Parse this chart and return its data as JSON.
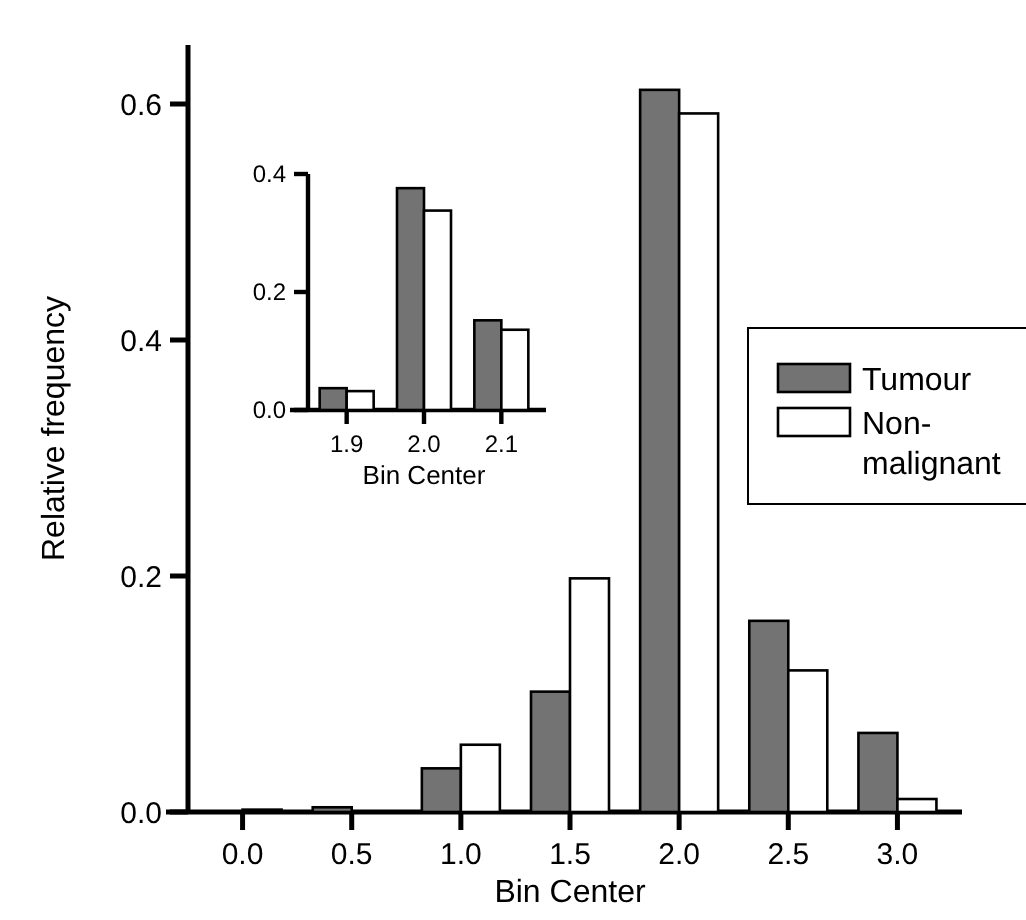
{
  "chart_data": [
    {
      "type": "bar",
      "xlabel": "Bin Center",
      "ylabel": "Relative frequency",
      "categories": [
        "0.0",
        "0.5",
        "1.0",
        "1.5",
        "2.0",
        "2.5",
        "3.0"
      ],
      "series": [
        {
          "name": "Tumour",
          "color": "#737373",
          "values": [
            0,
            0.004,
            0.037,
            0.102,
            0.612,
            0.162,
            0.067
          ]
        },
        {
          "name": "Non-\nmalignant",
          "color": "#ffffff",
          "values": [
            0.002,
            0,
            0.057,
            0.198,
            0.592,
            0.12,
            0.011
          ]
        }
      ],
      "ylim": [
        0,
        0.65
      ],
      "yticks": [
        {
          "value": 0,
          "label": "0.0"
        },
        {
          "value": 0.2,
          "label": "0.2"
        },
        {
          "value": 0.4,
          "label": "0.4"
        },
        {
          "value": 0.6,
          "label": "0.6"
        }
      ],
      "legend": "right"
    },
    {
      "type": "bar",
      "xlabel": "Bin Center",
      "categories": [
        "1.9",
        "2.0",
        "2.1"
      ],
      "series": [
        {
          "color": "#737373",
          "values": [
            0.037,
            0.376,
            0.152
          ]
        },
        {
          "color": "#ffffff",
          "values": [
            0.032,
            0.338,
            0.136
          ]
        }
      ],
      "ylim": [
        0,
        0.4
      ],
      "yticks": [
        {
          "value": 0,
          "label": "0.0"
        },
        {
          "value": 0.2,
          "label": "0.2"
        },
        {
          "value": 0.4,
          "label": "0.4"
        }
      ]
    }
  ]
}
